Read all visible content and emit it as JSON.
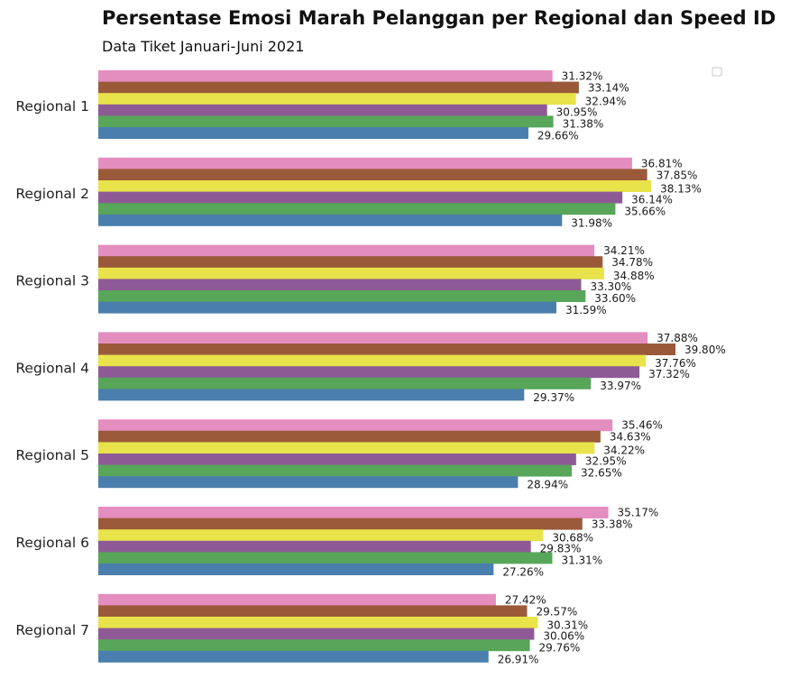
{
  "chart_data": {
    "type": "bar",
    "orientation": "horizontal",
    "title": "Persentase Emosi Marah Pelanggan per Regional dan Speed ID",
    "subtitle": "Data Tiket Januari-Juni 2021",
    "xlabel": "",
    "ylabel": "",
    "xlim": [
      0,
      42
    ],
    "grid": false,
    "legend": "top-right",
    "categories": [
      "Regional 1",
      "Regional 2",
      "Regional 3",
      "Regional 4",
      "Regional 5",
      "Regional 6",
      "Regional 7"
    ],
    "value_suffix": "%",
    "series": [
      {
        "color": "#e48dbf",
        "values": [
          31.32,
          36.81,
          34.21,
          37.88,
          35.46,
          35.17,
          27.42
        ]
      },
      {
        "color": "#9a5a3a",
        "values": [
          33.14,
          37.85,
          34.78,
          39.8,
          34.63,
          33.38,
          29.57
        ]
      },
      {
        "color": "#e8e34a",
        "values": [
          32.94,
          38.13,
          34.88,
          37.76,
          34.22,
          30.68,
          30.31
        ]
      },
      {
        "color": "#8e5a96",
        "values": [
          30.95,
          36.14,
          33.3,
          37.32,
          32.95,
          29.83,
          30.06
        ]
      },
      {
        "color": "#57a65a",
        "values": [
          31.38,
          35.66,
          33.6,
          33.97,
          32.65,
          31.31,
          29.76
        ]
      },
      {
        "color": "#4a7eac",
        "values": [
          29.66,
          31.98,
          31.59,
          29.37,
          28.94,
          27.26,
          26.91
        ]
      }
    ]
  }
}
